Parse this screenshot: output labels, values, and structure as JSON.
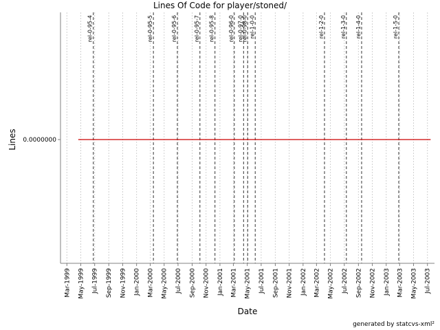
{
  "chart_data": {
    "type": "line",
    "title": "Lines Of Code for player/stoned/",
    "xlabel": "Date",
    "ylabel": "Lines",
    "y_ticks": [
      "0.0000000"
    ],
    "x_ticks": [
      {
        "date": "1999-03-01",
        "label": "Mar-1999"
      },
      {
        "date": "1999-05-01",
        "label": "May-1999"
      },
      {
        "date": "1999-07-01",
        "label": "Jul-1999"
      },
      {
        "date": "1999-09-01",
        "label": "Sep-1999"
      },
      {
        "date": "1999-11-01",
        "label": "Nov-1999"
      },
      {
        "date": "2000-01-01",
        "label": "Jan-2000"
      },
      {
        "date": "2000-03-01",
        "label": "Mar-2000"
      },
      {
        "date": "2000-05-01",
        "label": "May-2000"
      },
      {
        "date": "2000-07-01",
        "label": "Jul-2000"
      },
      {
        "date": "2000-09-01",
        "label": "Sep-2000"
      },
      {
        "date": "2000-11-01",
        "label": "Nov-2000"
      },
      {
        "date": "2001-01-01",
        "label": "Jan-2001"
      },
      {
        "date": "2001-03-01",
        "label": "Mar-2001"
      },
      {
        "date": "2001-05-01",
        "label": "May-2001"
      },
      {
        "date": "2001-07-01",
        "label": "Jul-2001"
      },
      {
        "date": "2001-09-01",
        "label": "Sep-2001"
      },
      {
        "date": "2001-11-01",
        "label": "Nov-2001"
      },
      {
        "date": "2002-01-01",
        "label": "Jan-2002"
      },
      {
        "date": "2002-03-01",
        "label": "Mar-2002"
      },
      {
        "date": "2002-05-01",
        "label": "May-2002"
      },
      {
        "date": "2002-07-01",
        "label": "Jul-2002"
      },
      {
        "date": "2002-09-01",
        "label": "Sep-2002"
      },
      {
        "date": "2002-11-01",
        "label": "Nov-2002"
      },
      {
        "date": "2003-01-01",
        "label": "Jan-2003"
      },
      {
        "date": "2003-03-01",
        "label": "Mar-2003"
      },
      {
        "date": "2003-05-01",
        "label": "May-2003"
      },
      {
        "date": "2003-07-01",
        "label": "Jul-2003"
      }
    ],
    "xlim": [
      "1999-02-01",
      "2003-08-01"
    ],
    "grid": true,
    "series": [
      {
        "color": "#cc0000",
        "x": [
          "1999-04-20",
          "2003-07-15"
        ],
        "y": [
          0,
          0
        ]
      }
    ],
    "markers": [
      {
        "label": "rel-0-95-4",
        "date": "1999-06-25"
      },
      {
        "label": "rel-0-95-5",
        "date": "2000-03-15"
      },
      {
        "label": "rel-0-95-6",
        "date": "2000-06-28"
      },
      {
        "label": "rel-0-95-7",
        "date": "2000-10-05"
      },
      {
        "label": "rel-0-95-8",
        "date": "2000-12-10"
      },
      {
        "label": "rel-0-96-0",
        "date": "2001-03-05"
      },
      {
        "label": "rel-0-97-0",
        "date": "2001-04-15"
      },
      {
        "label": "rel-0-98-0",
        "date": "2001-05-03"
      },
      {
        "label": "rel-1-0-0",
        "date": "2001-06-05"
      },
      {
        "label": "rel-1-2-0",
        "date": "2002-04-05"
      },
      {
        "label": "rel-1-3-0",
        "date": "2002-07-10"
      },
      {
        "label": "rel-1-4-0",
        "date": "2002-09-15"
      },
      {
        "label": "rel-1-5-0",
        "date": "2003-02-25"
      }
    ],
    "marker_color": "#555555"
  },
  "footer": {
    "generated_by": "generated by statcvs-xml²"
  }
}
